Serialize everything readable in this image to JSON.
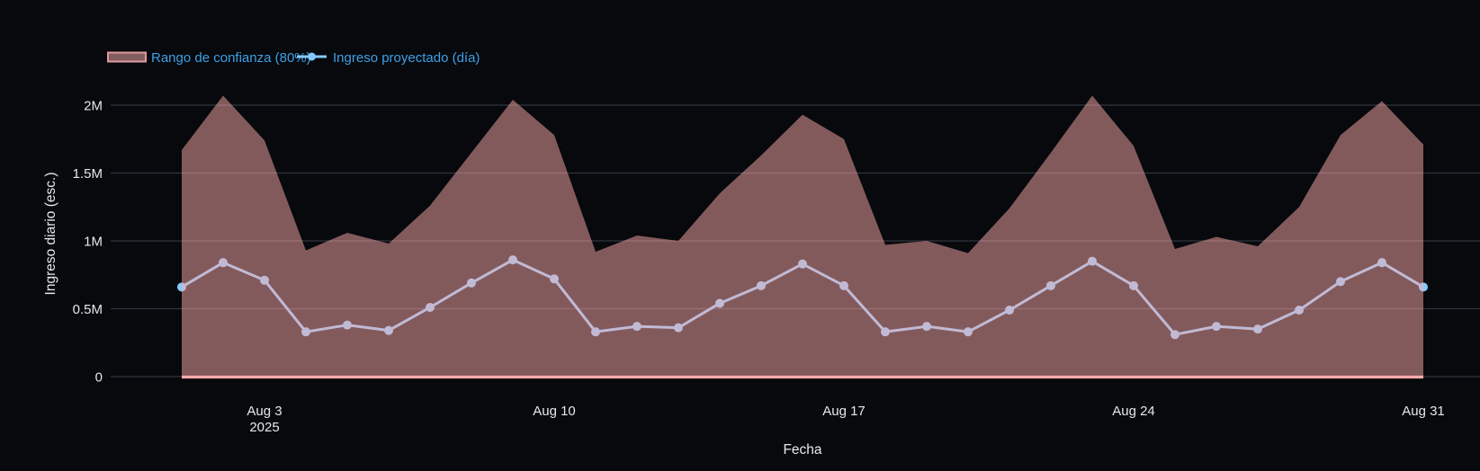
{
  "legend": {
    "items": [
      {
        "label": "Rango de confianza (80%)",
        "glyph": "band-swatch"
      },
      {
        "label": "Ingreso proyectado (día)",
        "glyph": "line-with-dot"
      }
    ]
  },
  "colors": {
    "background": "#07090c",
    "grid": "#31343c",
    "tick_text": "#e8e8ea",
    "legend_text": "#3da0e8",
    "line": "#83c9ff",
    "band_fill": "rgba(255,171,171,0.50)",
    "band_edge": "#ffabab",
    "band_swatch_fill": "#845d60",
    "band_swatch_border": "#e09a9e"
  },
  "chart_data": {
    "type": "line",
    "title": "",
    "xlabel": "Fecha",
    "ylabel": "Ingreso diario (esc.)",
    "x": [
      "Aug 1",
      "Aug 2",
      "Aug 3",
      "Aug 4",
      "Aug 5",
      "Aug 6",
      "Aug 7",
      "Aug 8",
      "Aug 9",
      "Aug 10",
      "Aug 11",
      "Aug 12",
      "Aug 13",
      "Aug 14",
      "Aug 15",
      "Aug 16",
      "Aug 17",
      "Aug 18",
      "Aug 19",
      "Aug 20",
      "Aug 21",
      "Aug 22",
      "Aug 23",
      "Aug 24",
      "Aug 25",
      "Aug 26",
      "Aug 27",
      "Aug 28",
      "Aug 29",
      "Aug 30",
      "Aug 31"
    ],
    "year": "2025",
    "units": "millions",
    "series": [
      {
        "name": "Rango de confianza (80%)",
        "type": "band",
        "upper": [
          1.67,
          2.07,
          1.74,
          0.93,
          1.06,
          0.98,
          1.26,
          1.65,
          2.04,
          1.78,
          0.92,
          1.04,
          1.0,
          1.35,
          1.63,
          1.93,
          1.75,
          0.97,
          1.0,
          0.91,
          1.24,
          1.65,
          2.07,
          1.7,
          0.94,
          1.03,
          0.96,
          1.25,
          1.78,
          2.03,
          1.71
        ],
        "lower_constant": 0
      },
      {
        "name": "Ingreso proyectado (día)",
        "type": "line",
        "values": [
          0.66,
          0.84,
          0.71,
          0.33,
          0.38,
          0.34,
          0.51,
          0.69,
          0.86,
          0.72,
          0.33,
          0.37,
          0.36,
          0.54,
          0.67,
          0.83,
          0.67,
          0.33,
          0.37,
          0.33,
          0.49,
          0.67,
          0.85,
          0.67,
          0.31,
          0.37,
          0.35,
          0.49,
          0.7,
          0.84,
          0.66
        ]
      }
    ],
    "yticks": [
      {
        "label": "0",
        "value": 0
      },
      {
        "label": "0.5M",
        "value": 0.5
      },
      {
        "label": "1M",
        "value": 1
      },
      {
        "label": "1.5M",
        "value": 1.5
      },
      {
        "label": "2M",
        "value": 2
      }
    ],
    "xticks": [
      {
        "label": "Aug 3",
        "sublabel": "2025",
        "day": 3
      },
      {
        "label": "Aug 10",
        "sublabel": "",
        "day": 10
      },
      {
        "label": "Aug 17",
        "sublabel": "",
        "day": 17
      },
      {
        "label": "Aug 24",
        "sublabel": "",
        "day": 24
      },
      {
        "label": "Aug 31",
        "sublabel": "",
        "day": 31
      }
    ],
    "ylim": [
      0,
      2.14
    ],
    "grid": "horizontal-only",
    "legend_position": "top-left"
  }
}
